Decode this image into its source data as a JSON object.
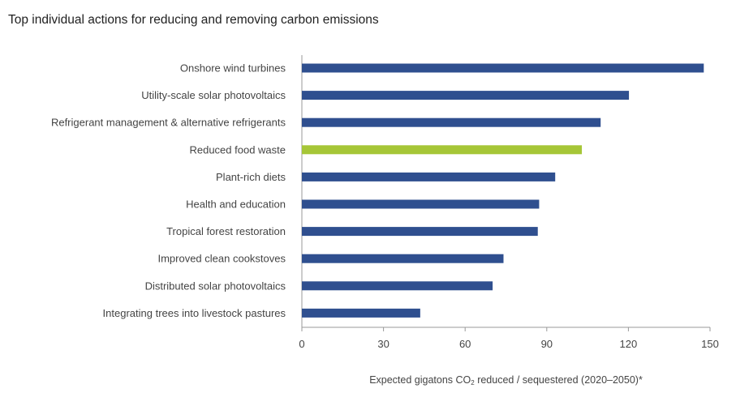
{
  "chart_data": {
    "type": "bar",
    "orientation": "horizontal",
    "title": "Top individual actions for reducing and removing carbon emissions",
    "categories": [
      "Onshore wind turbines",
      "Utility-scale solar photovoltaics",
      "Refrigerant management & alternative refrigerants",
      "Reduced food waste",
      "Plant-rich diets",
      "Health and education",
      "Tropical forest restoration",
      "Improved clean cookstoves",
      "Distributed solar photovoltaics",
      "Integrating trees into livestock pastures"
    ],
    "values": [
      147.7,
      120.2,
      109.8,
      102.9,
      93.1,
      87.2,
      86.7,
      74.1,
      70.1,
      43.5
    ],
    "highlight_index": 3,
    "colors": {
      "bar": "#2f4f8f",
      "highlight": "#a6c637",
      "axis": "#999999",
      "text": "#444444"
    },
    "xlabel": {
      "prefix": "Expected gigatons CO",
      "subscript": "2",
      "suffix": " reduced / sequestered (2020–2050)*"
    },
    "xlim": [
      0,
      150
    ],
    "xticks": [
      "0",
      "30",
      "60",
      "90",
      "120",
      "150"
    ],
    "grid": false,
    "legend": "none"
  }
}
